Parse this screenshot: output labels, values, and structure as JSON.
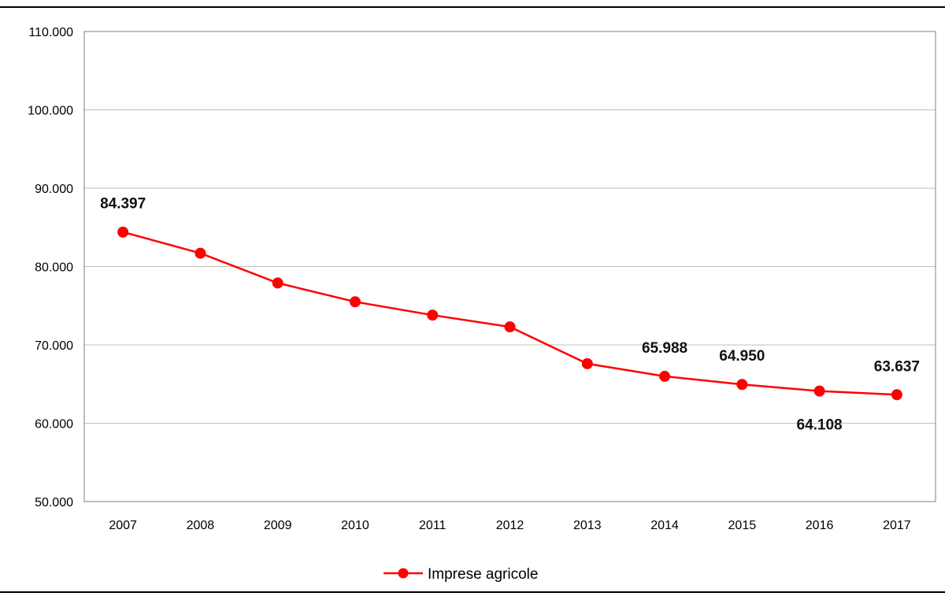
{
  "chart_data": {
    "type": "line",
    "title": "",
    "xlabel": "",
    "ylabel": "",
    "categories": [
      "2007",
      "2008",
      "2009",
      "2010",
      "2011",
      "2012",
      "2013",
      "2014",
      "2015",
      "2016",
      "2017"
    ],
    "series": [
      {
        "name": "Imprese agricole",
        "color": "#ff0000",
        "values": [
          84397,
          81700,
          77900,
          75500,
          73800,
          72300,
          67600,
          65988,
          64950,
          64108,
          63637
        ]
      }
    ],
    "ylim": [
      50000,
      110000
    ],
    "yticks": [
      50000,
      60000,
      70000,
      80000,
      90000,
      100000,
      110000
    ],
    "ytick_labels": [
      "50.000",
      "60.000",
      "70.000",
      "80.000",
      "90.000",
      "100.000",
      "110.000"
    ],
    "data_labels": [
      {
        "index": 0,
        "text": "84.397",
        "placement": "above"
      },
      {
        "index": 7,
        "text": "65.988",
        "placement": "above"
      },
      {
        "index": 8,
        "text": "64.950",
        "placement": "above"
      },
      {
        "index": 9,
        "text": "64.108",
        "placement": "below"
      },
      {
        "index": 10,
        "text": "63.637",
        "placement": "above"
      }
    ],
    "grid": true,
    "legend": {
      "position": "bottom",
      "entries": [
        "Imprese agricole"
      ]
    }
  }
}
